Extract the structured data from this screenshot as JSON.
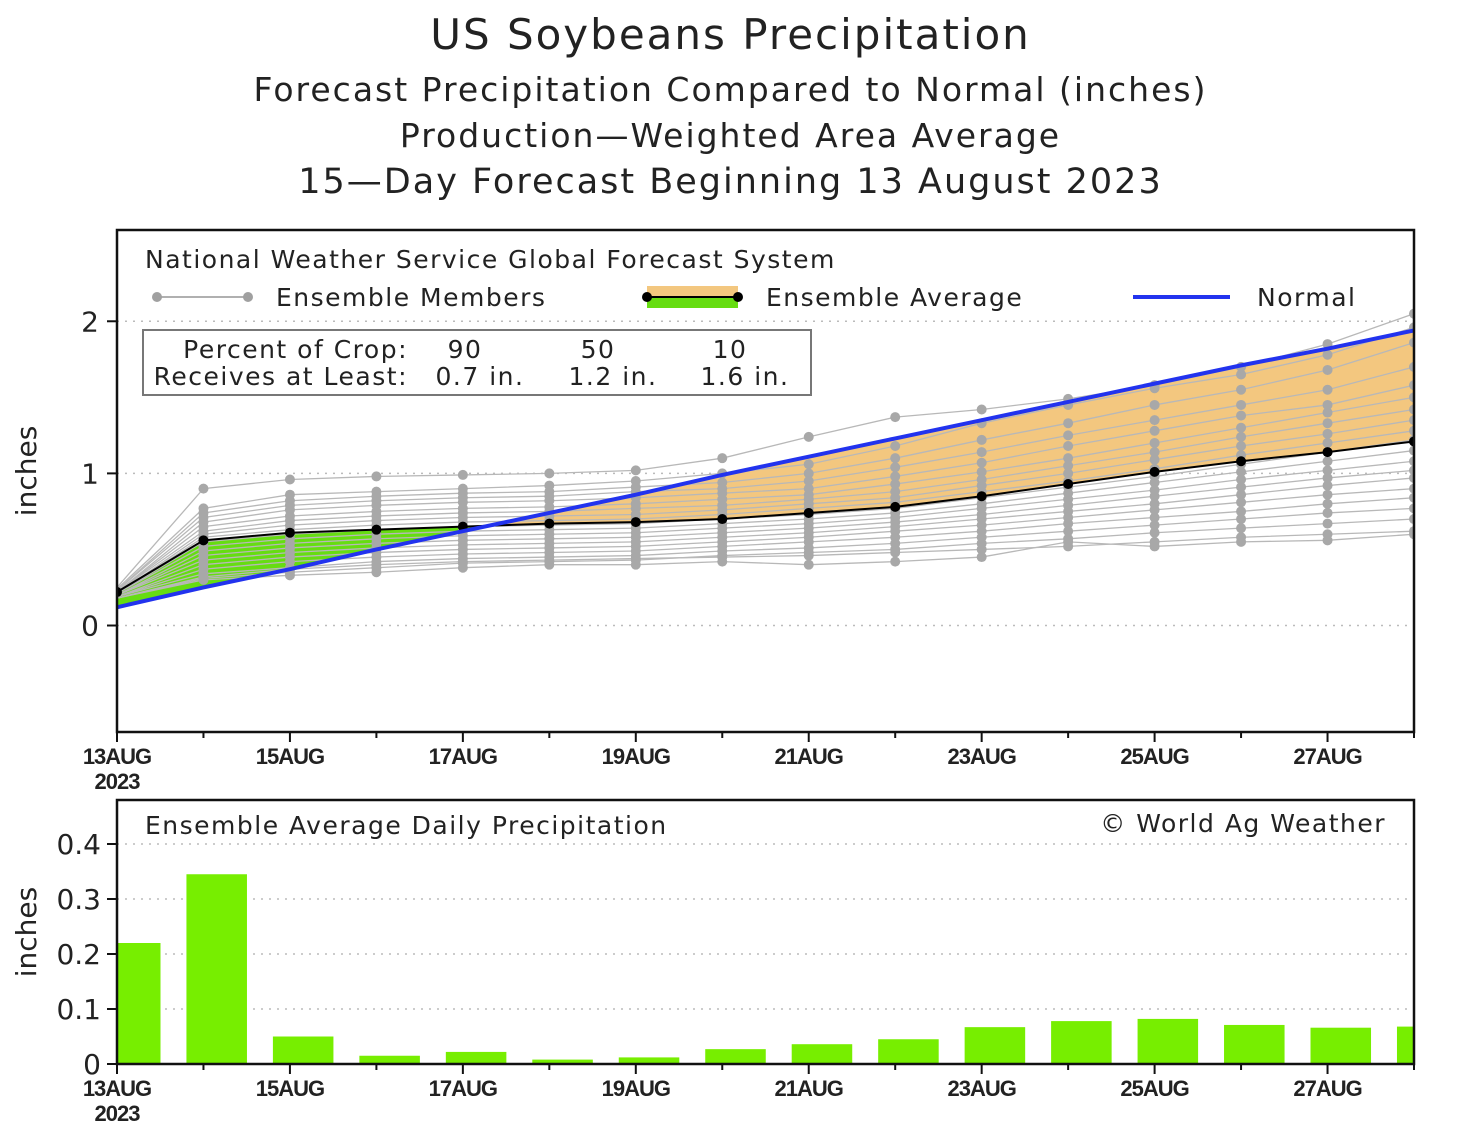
{
  "title": "US Soybeans Precipitation",
  "subtitle1": "Forecast Precipitation Compared to Normal (inches)",
  "subtitle2": "Production—Weighted Area Average",
  "subtitle3": "15—Day Forecast Beginning 13 August 2023",
  "source": "National Weather Service Global Forecast System",
  "copyright": "© World Ag Weather",
  "colors": {
    "normal": "#2233ee",
    "above_normal_fill": "#f3c77f",
    "below_normal_fill": "#66dd11",
    "bar": "#77ee00",
    "member": "#a8a8a8",
    "average": "#000000"
  },
  "legend": {
    "members": "Ensemble Members",
    "average": "Ensemble Average",
    "normal": "Normal"
  },
  "crop_box": {
    "row1_label": "Percent of Crop:",
    "row2_label": "Receives at Least:",
    "percents": [
      "90",
      "50",
      "10"
    ],
    "amounts": [
      "0.7 in.",
      "1.2 in.",
      "1.6 in."
    ]
  },
  "chart_data": [
    {
      "type": "line",
      "ylabel": "inches",
      "ylim": [
        -0.7,
        2.6
      ],
      "yticks": [
        "0",
        "1",
        "2"
      ],
      "grid": true,
      "x": [
        "13AUG",
        "14AUG",
        "15AUG",
        "16AUG",
        "17AUG",
        "18AUG",
        "19AUG",
        "20AUG",
        "21AUG",
        "22AUG",
        "23AUG",
        "24AUG",
        "25AUG",
        "26AUG",
        "27AUG",
        "28AUG"
      ],
      "xtick_labels": [
        "13AUG",
        "15AUG",
        "17AUG",
        "19AUG",
        "21AUG",
        "23AUG",
        "25AUG",
        "27AUG"
      ],
      "xtick_year": "2023",
      "series": [
        {
          "name": "Ensemble Average",
          "values": [
            0.22,
            0.56,
            0.61,
            0.63,
            0.65,
            0.67,
            0.68,
            0.7,
            0.74,
            0.78,
            0.85,
            0.93,
            1.01,
            1.08,
            1.14,
            1.21
          ]
        },
        {
          "name": "Normal",
          "values": [
            0.12,
            0.25,
            0.37,
            0.5,
            0.62,
            0.74,
            0.86,
            0.99,
            1.11,
            1.23,
            1.35,
            1.47,
            1.59,
            1.71,
            1.82,
            1.94
          ]
        }
      ],
      "members": [
        [
          0.25,
          0.9,
          0.96,
          0.98,
          0.99,
          1.0,
          1.02,
          1.1,
          1.24,
          1.37,
          1.42,
          1.49,
          1.58,
          1.7,
          1.85,
          2.05
        ],
        [
          0.24,
          0.77,
          0.86,
          0.88,
          0.9,
          0.92,
          0.95,
          1.0,
          1.06,
          1.18,
          1.33,
          1.45,
          1.56,
          1.65,
          1.78,
          1.96
        ],
        [
          0.23,
          0.74,
          0.82,
          0.85,
          0.87,
          0.88,
          0.91,
          0.94,
          1.0,
          1.1,
          1.22,
          1.33,
          1.45,
          1.55,
          1.68,
          1.86
        ],
        [
          0.23,
          0.71,
          0.79,
          0.82,
          0.84,
          0.85,
          0.88,
          0.9,
          0.95,
          1.04,
          1.14,
          1.25,
          1.35,
          1.45,
          1.55,
          1.7
        ],
        [
          0.22,
          0.68,
          0.76,
          0.79,
          0.81,
          0.82,
          0.84,
          0.87,
          0.9,
          0.98,
          1.07,
          1.18,
          1.28,
          1.38,
          1.45,
          1.58
        ],
        [
          0.22,
          0.65,
          0.72,
          0.75,
          0.77,
          0.78,
          0.8,
          0.83,
          0.86,
          0.93,
          1.01,
          1.1,
          1.2,
          1.3,
          1.4,
          1.5
        ],
        [
          0.22,
          0.62,
          0.69,
          0.72,
          0.74,
          0.75,
          0.77,
          0.79,
          0.83,
          0.88,
          0.96,
          1.05,
          1.14,
          1.24,
          1.33,
          1.42
        ],
        [
          0.21,
          0.6,
          0.66,
          0.69,
          0.71,
          0.72,
          0.73,
          0.76,
          0.8,
          0.84,
          0.92,
          1.0,
          1.09,
          1.18,
          1.26,
          1.35
        ],
        [
          0.21,
          0.58,
          0.63,
          0.66,
          0.68,
          0.69,
          0.7,
          0.73,
          0.77,
          0.81,
          0.88,
          0.95,
          1.03,
          1.12,
          1.2,
          1.28
        ],
        [
          0.21,
          0.55,
          0.6,
          0.63,
          0.65,
          0.66,
          0.67,
          0.7,
          0.73,
          0.77,
          0.84,
          0.91,
          0.98,
          1.06,
          1.14,
          1.22
        ],
        [
          0.21,
          0.52,
          0.57,
          0.6,
          0.62,
          0.63,
          0.64,
          0.67,
          0.7,
          0.74,
          0.8,
          0.87,
          0.94,
          1.01,
          1.08,
          1.15
        ],
        [
          0.2,
          0.49,
          0.54,
          0.57,
          0.59,
          0.6,
          0.61,
          0.64,
          0.67,
          0.71,
          0.77,
          0.83,
          0.89,
          0.96,
          1.02,
          1.08
        ],
        [
          0.2,
          0.46,
          0.51,
          0.54,
          0.56,
          0.57,
          0.58,
          0.61,
          0.64,
          0.68,
          0.73,
          0.79,
          0.85,
          0.91,
          0.97,
          1.02
        ],
        [
          0.2,
          0.43,
          0.48,
          0.51,
          0.53,
          0.54,
          0.55,
          0.58,
          0.61,
          0.65,
          0.7,
          0.75,
          0.8,
          0.86,
          0.92,
          0.97
        ],
        [
          0.19,
          0.4,
          0.45,
          0.48,
          0.5,
          0.51,
          0.52,
          0.55,
          0.58,
          0.62,
          0.66,
          0.71,
          0.76,
          0.81,
          0.86,
          0.9
        ],
        [
          0.19,
          0.37,
          0.42,
          0.45,
          0.47,
          0.48,
          0.49,
          0.52,
          0.55,
          0.58,
          0.62,
          0.67,
          0.71,
          0.75,
          0.8,
          0.84
        ],
        [
          0.19,
          0.34,
          0.38,
          0.42,
          0.44,
          0.45,
          0.46,
          0.49,
          0.51,
          0.54,
          0.58,
          0.62,
          0.66,
          0.7,
          0.74,
          0.77
        ],
        [
          0.18,
          0.31,
          0.35,
          0.38,
          0.41,
          0.42,
          0.43,
          0.46,
          0.48,
          0.5,
          0.54,
          0.57,
          0.61,
          0.64,
          0.67,
          0.7
        ],
        [
          0.18,
          0.32,
          0.37,
          0.4,
          0.42,
          0.43,
          0.44,
          0.45,
          0.46,
          0.48,
          0.5,
          0.52,
          0.55,
          0.58,
          0.6,
          0.62
        ],
        [
          0.18,
          0.3,
          0.33,
          0.35,
          0.38,
          0.4,
          0.4,
          0.42,
          0.4,
          0.42,
          0.45,
          0.55,
          0.52,
          0.55,
          0.56,
          0.6
        ]
      ]
    },
    {
      "type": "bar",
      "title": "Ensemble Average Daily Precipitation",
      "ylabel": "inches",
      "ylim": [
        0,
        0.48
      ],
      "yticks": [
        "0",
        "0.1",
        "0.2",
        "0.3",
        "0.4"
      ],
      "grid": true,
      "x": [
        "13AUG",
        "14AUG",
        "15AUG",
        "16AUG",
        "17AUG",
        "18AUG",
        "19AUG",
        "20AUG",
        "21AUG",
        "22AUG",
        "23AUG",
        "24AUG",
        "25AUG",
        "26AUG",
        "27AUG",
        "28AUG"
      ],
      "xtick_labels": [
        "13AUG",
        "15AUG",
        "17AUG",
        "19AUG",
        "21AUG",
        "23AUG",
        "25AUG",
        "27AUG"
      ],
      "xtick_year": "2023",
      "values": [
        0.22,
        0.345,
        0.05,
        0.015,
        0.022,
        0.008,
        0.012,
        0.027,
        0.036,
        0.045,
        0.067,
        0.078,
        0.082,
        0.071,
        0.066,
        0.068
      ]
    }
  ]
}
